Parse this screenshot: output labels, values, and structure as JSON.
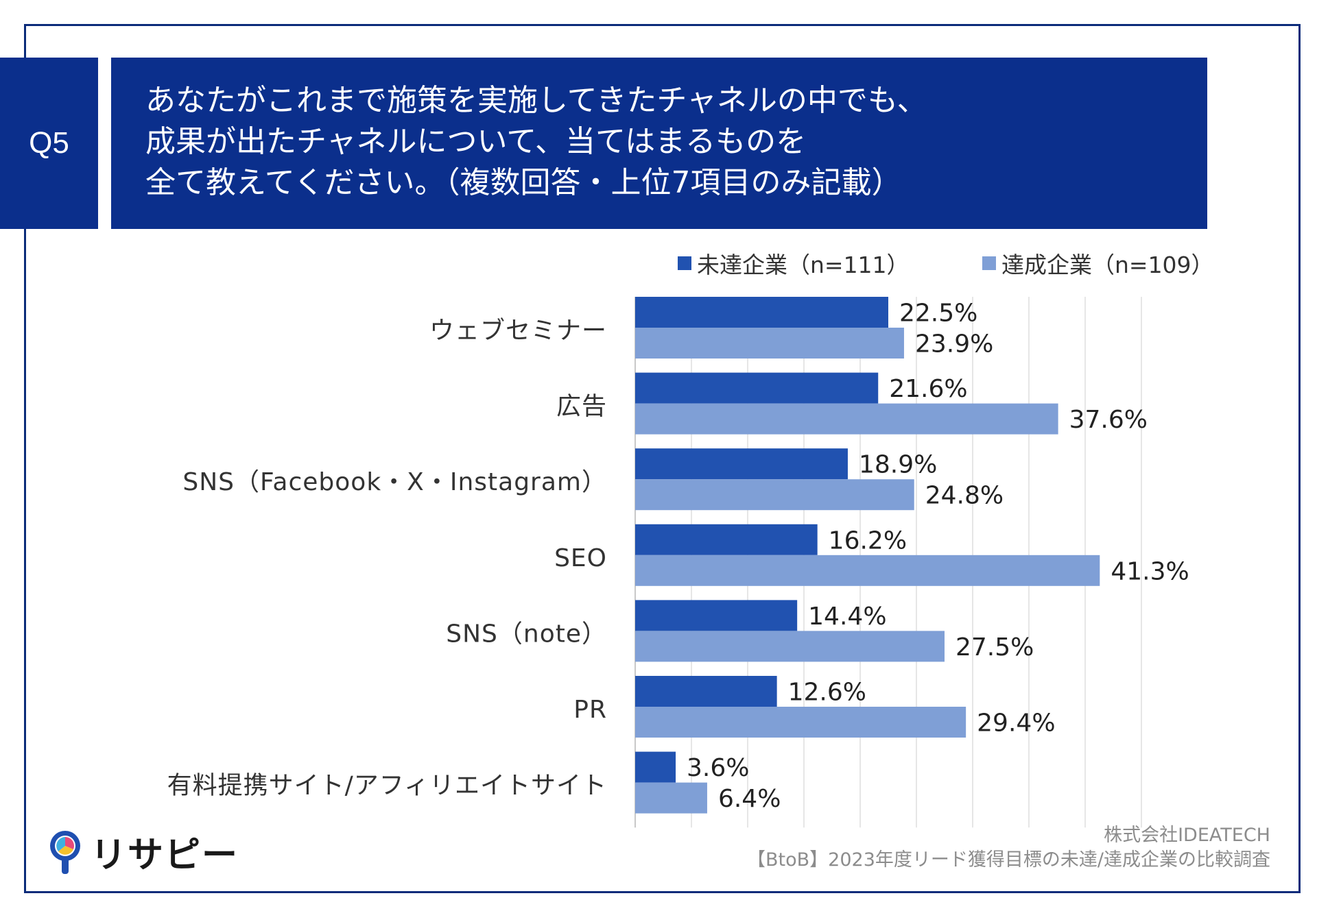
{
  "question": {
    "badge": "Q5",
    "lines": [
      "あなたがこれまで施策を実施してきたチャネルの中でも、",
      "成果が出たチャネルについて、当てはまるものを",
      "全て教えてください。（複数回答・上位7項目のみ記載）"
    ]
  },
  "colors": {
    "navy": "#0b2f8c",
    "series1": "#2152b0",
    "series2": "#7f9fd6"
  },
  "chart_data": {
    "type": "bar",
    "orientation": "horizontal",
    "categories": [
      "ウェブセミナー",
      "広告",
      "SNS（Facebook・X・Instagram）",
      "SEO",
      "SNS（note）",
      "PR",
      "有料提携サイト/アフィリエイトサイト"
    ],
    "series": [
      {
        "name": "未達企業（n=111）",
        "values": [
          22.5,
          21.6,
          18.9,
          16.2,
          14.4,
          12.6,
          3.6
        ],
        "labels": [
          "22.5%",
          "21.6%",
          "18.9%",
          "16.2%",
          "14.4%",
          "12.6%",
          "3.6%"
        ]
      },
      {
        "name": "達成企業（n=109）",
        "values": [
          23.9,
          37.6,
          24.8,
          41.3,
          27.5,
          29.4,
          6.4
        ],
        "labels": [
          "23.9%",
          "37.6%",
          "24.8%",
          "41.3%",
          "27.5%",
          "29.4%",
          "6.4%"
        ]
      }
    ],
    "xlim": [
      0,
      45
    ],
    "grid": true,
    "legend": "top-right"
  },
  "credit": {
    "company": "株式会社IDEATECH",
    "survey": "【BtoB】2023年度リード獲得目標の未達/達成企業の比較調査"
  },
  "logo": {
    "text": "リサピー"
  }
}
